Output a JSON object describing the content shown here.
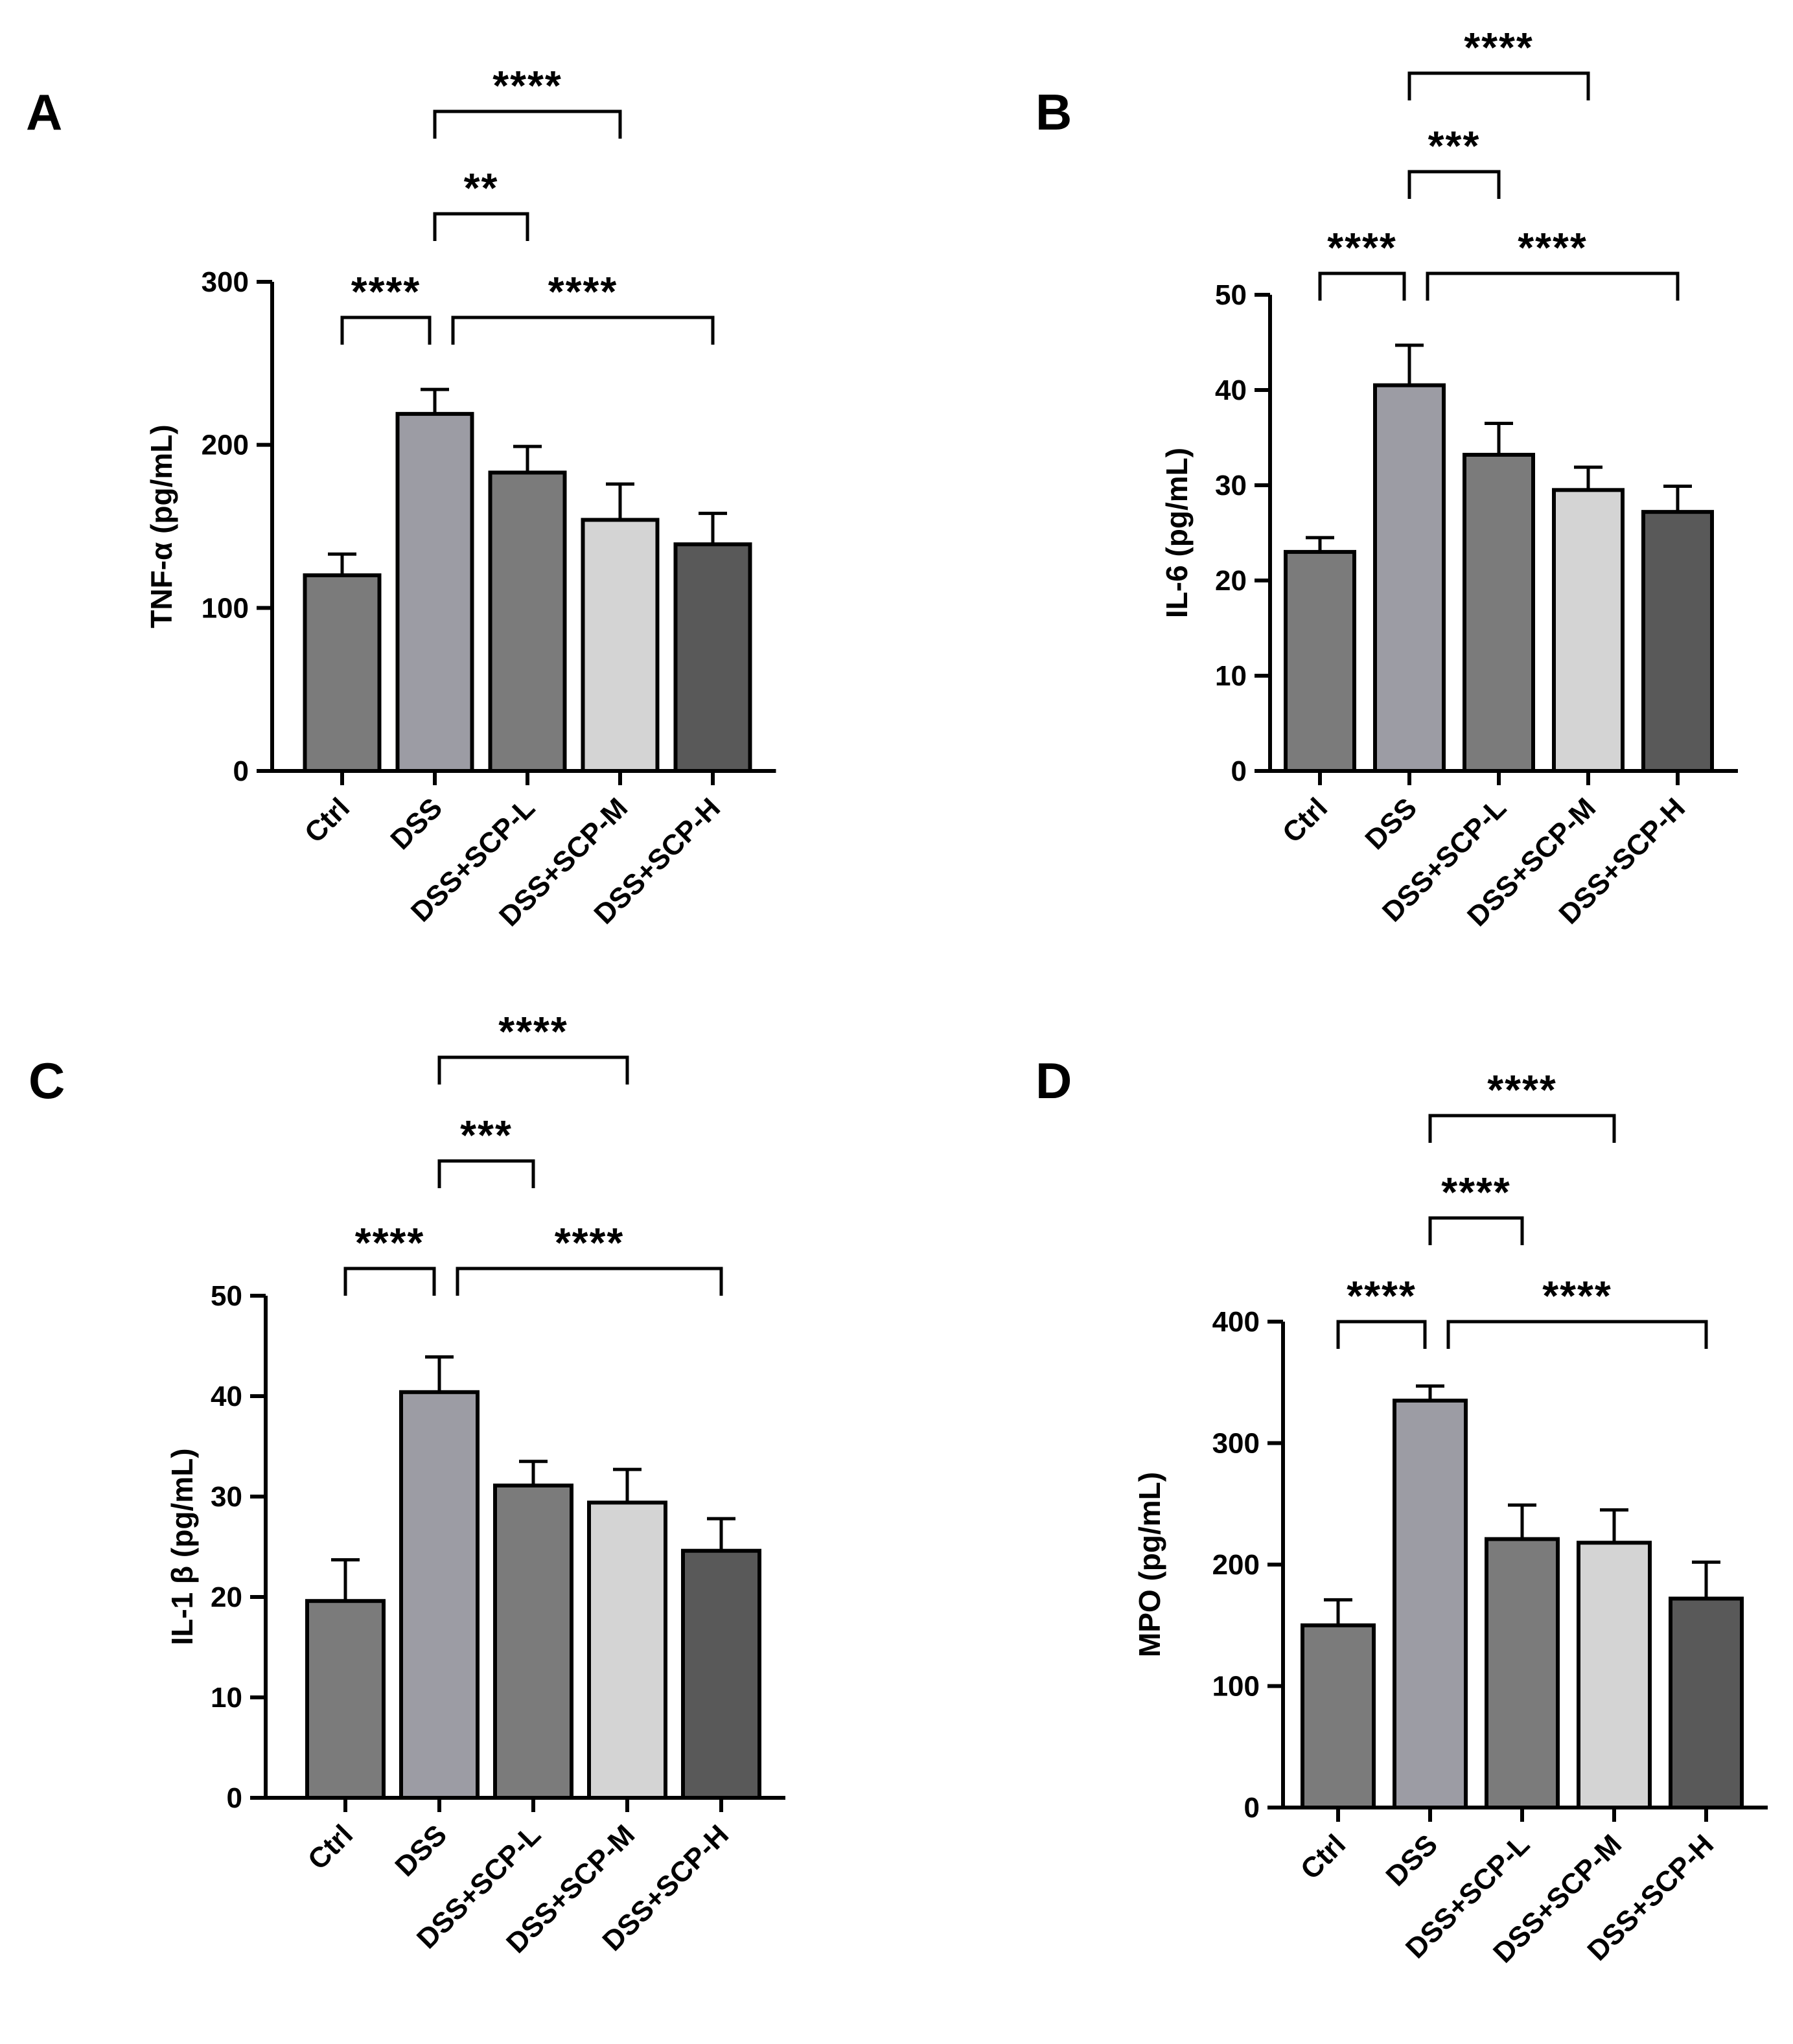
{
  "colors": {
    "ctrl": "#7b7b7b",
    "dss": "#9c9ca4",
    "scp_l": "#7b7b7b",
    "scp_m": "#d4d4d4",
    "scp_h": "#595959"
  },
  "chart_data": [
    {
      "panel": "A",
      "type": "bar",
      "categories": [
        "Ctrl",
        "DSS",
        "DSS+SCP-L",
        "DSS+SCP-M",
        "DSS+SCP-H"
      ],
      "values": [
        120,
        219,
        183,
        154,
        139
      ],
      "errors": [
        13,
        15,
        16,
        22,
        19
      ],
      "ylabel": "TNF-α (pg/mL)",
      "ylim": [
        0,
        300
      ],
      "yticks": [
        0,
        100,
        200,
        300
      ],
      "significance": [
        {
          "from": 0,
          "to": 1,
          "label": "****",
          "level": 0
        },
        {
          "from": 1,
          "to": 4,
          "label": "****",
          "level": 0
        },
        {
          "from": 1,
          "to": 2,
          "label": "**",
          "level": 1
        },
        {
          "from": 1,
          "to": 3,
          "label": "****",
          "level": 2
        }
      ]
    },
    {
      "panel": "B",
      "type": "bar",
      "categories": [
        "Ctrl",
        "DSS",
        "DSS+SCP-L",
        "DSS+SCP-M",
        "DSS+SCP-H"
      ],
      "values": [
        23,
        40.5,
        33.2,
        29.5,
        27.2
      ],
      "errors": [
        1.5,
        4.2,
        3.3,
        2.4,
        2.7
      ],
      "ylabel": "IL-6 (pg/mL)",
      "ylim": [
        0,
        50
      ],
      "yticks": [
        0,
        10,
        20,
        30,
        40,
        50
      ],
      "significance": [
        {
          "from": 0,
          "to": 1,
          "label": "****",
          "level": 0
        },
        {
          "from": 1,
          "to": 4,
          "label": "****",
          "level": 0
        },
        {
          "from": 1,
          "to": 2,
          "label": "***",
          "level": 1
        },
        {
          "from": 1,
          "to": 3,
          "label": "****",
          "level": 2
        }
      ]
    },
    {
      "panel": "C",
      "type": "bar",
      "categories": [
        "Ctrl",
        "DSS",
        "DSS+SCP-L",
        "DSS+SCP-M",
        "DSS+SCP-H"
      ],
      "values": [
        19.6,
        40.4,
        31.1,
        29.4,
        24.6
      ],
      "errors": [
        4.1,
        3.5,
        2.4,
        3.3,
        3.2
      ],
      "ylabel": "IL-1 β (pg/mL)",
      "ylim": [
        0,
        50
      ],
      "yticks": [
        0,
        10,
        20,
        30,
        40,
        50
      ],
      "significance": [
        {
          "from": 0,
          "to": 1,
          "label": "****",
          "level": 0
        },
        {
          "from": 1,
          "to": 4,
          "label": "****",
          "level": 0
        },
        {
          "from": 1,
          "to": 2,
          "label": "***",
          "level": 1
        },
        {
          "from": 1,
          "to": 3,
          "label": "****",
          "level": 2
        }
      ]
    },
    {
      "panel": "D",
      "type": "bar",
      "categories": [
        "Ctrl",
        "DSS",
        "DSS+SCP-L",
        "DSS+SCP-M",
        "DSS+SCP-H"
      ],
      "values": [
        150,
        335,
        221,
        218,
        172
      ],
      "errors": [
        21,
        12,
        28,
        27,
        30
      ],
      "ylabel": "MPO (pg/mL)",
      "ylim": [
        0,
        400
      ],
      "yticks": [
        0,
        100,
        200,
        300,
        400
      ],
      "significance": [
        {
          "from": 0,
          "to": 1,
          "label": "****",
          "level": 0
        },
        {
          "from": 1,
          "to": 4,
          "label": "****",
          "level": 0
        },
        {
          "from": 1,
          "to": 2,
          "label": "****",
          "level": 1
        },
        {
          "from": 1,
          "to": 3,
          "label": "****",
          "level": 2
        }
      ]
    }
  ]
}
